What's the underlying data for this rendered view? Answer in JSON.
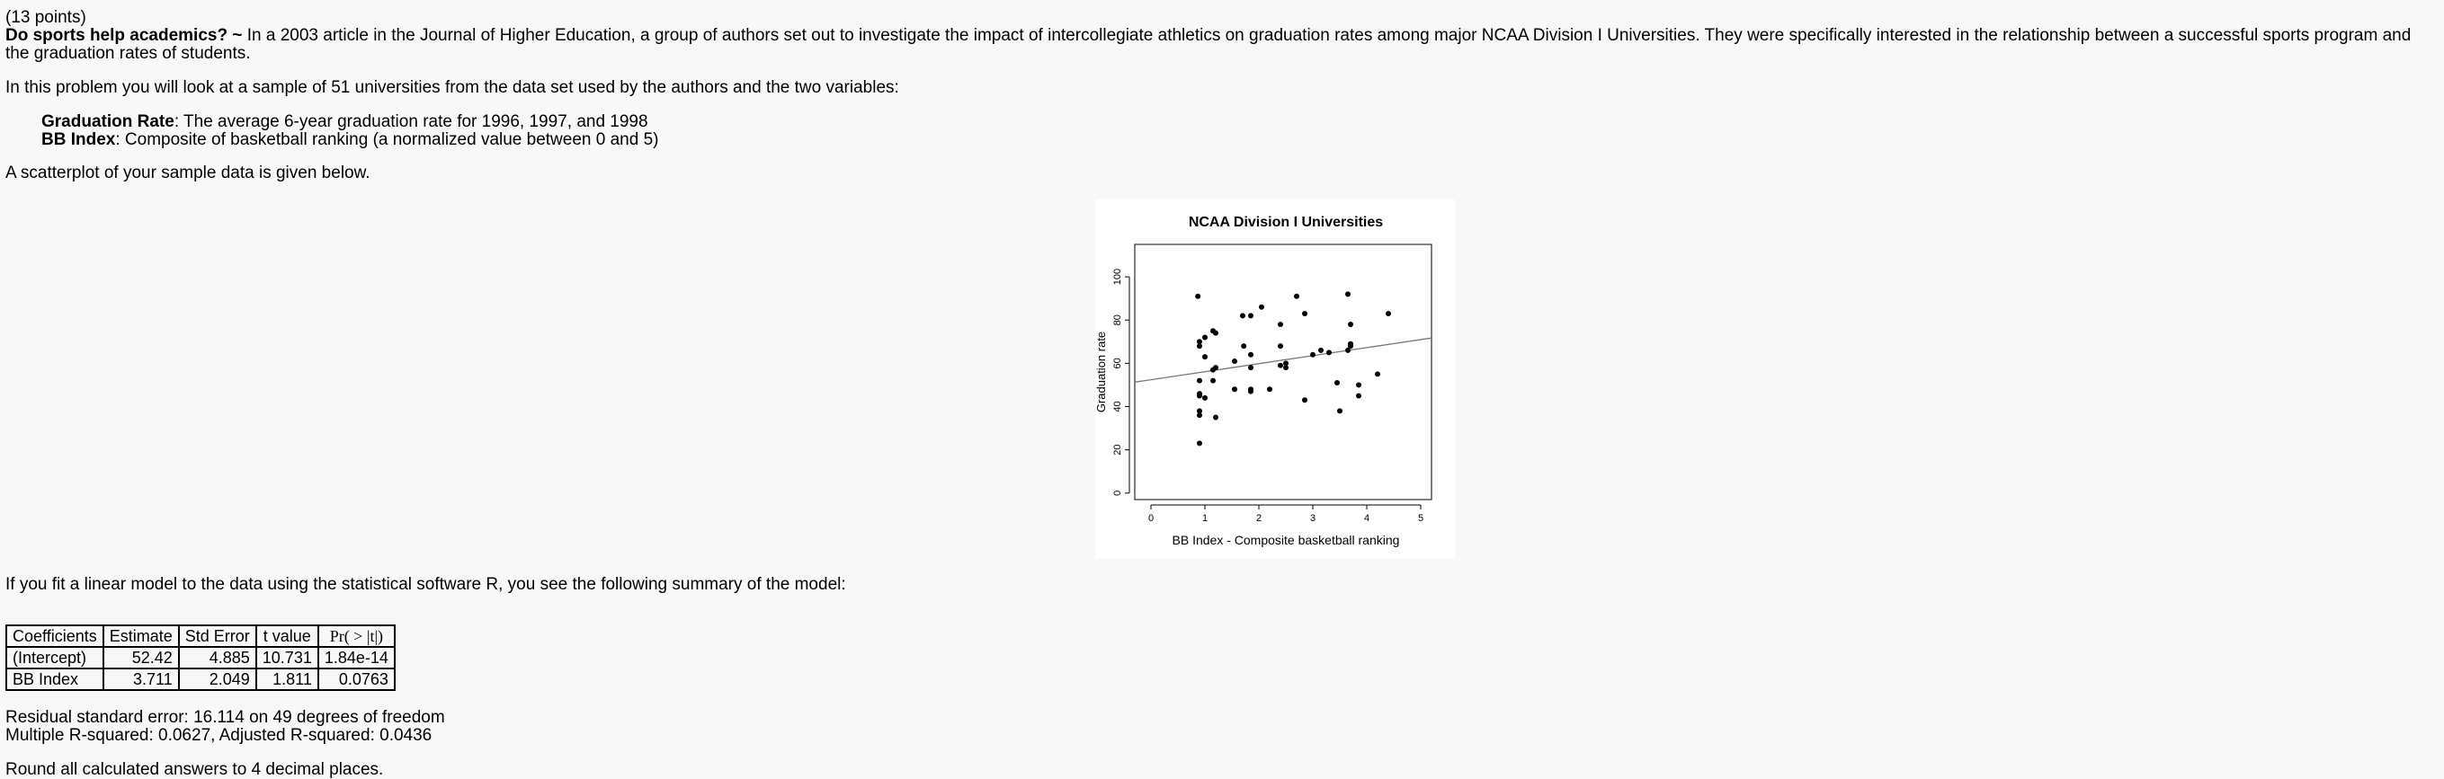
{
  "points_label": "(13 points)",
  "intro": {
    "title": "Do sports help academics? ~",
    "text": "In a 2003 article in the Journal of Higher Education, a group of authors set out to investigate the impact of intercollegiate athletics on graduation rates among major NCAA Division I Universities. They were specifically interested in the relationship between a successful sports program and the graduation rates of students."
  },
  "sample_text": "In this problem you will look at a sample of 51 universities from the data set used by the authors and the two variables:",
  "variables": [
    {
      "name": "Graduation Rate",
      "desc": ": The average 6-year graduation rate for 1996, 1997, and 1998"
    },
    {
      "name": "BB Index",
      "desc": ": Composite of basketball ranking (a normalized value between 0 and 5)"
    }
  ],
  "scatter_text": "A scatterplot of your sample data is given below.",
  "chart_data": {
    "type": "scatter",
    "title": "NCAA Division I Universities",
    "xlabel": "BB Index - Composite basketball ranking",
    "ylabel": "Graduation rate",
    "xlim": [
      0,
      5
    ],
    "ylim": [
      0,
      100
    ],
    "xticks": [
      "0",
      "1",
      "2",
      "3",
      "4",
      "5"
    ],
    "yticks": [
      "0",
      "20",
      "40",
      "60",
      "80",
      "100"
    ],
    "grid": false,
    "points": [
      [
        0.87,
        91
      ],
      [
        0.9,
        68
      ],
      [
        0.9,
        70
      ],
      [
        0.9,
        52
      ],
      [
        0.9,
        45
      ],
      [
        0.9,
        46
      ],
      [
        0.9,
        38
      ],
      [
        0.9,
        36
      ],
      [
        0.9,
        23
      ],
      [
        1.0,
        72
      ],
      [
        1.0,
        63
      ],
      [
        1.0,
        44
      ],
      [
        1.15,
        75
      ],
      [
        1.2,
        74
      ],
      [
        1.2,
        58
      ],
      [
        1.15,
        57
      ],
      [
        1.15,
        52
      ],
      [
        1.2,
        35
      ],
      [
        1.55,
        61
      ],
      [
        1.55,
        48
      ],
      [
        1.7,
        82
      ],
      [
        1.72,
        68
      ],
      [
        1.85,
        82
      ],
      [
        1.85,
        64
      ],
      [
        1.85,
        58
      ],
      [
        1.85,
        48
      ],
      [
        1.85,
        47
      ],
      [
        2.05,
        86
      ],
      [
        2.2,
        48
      ],
      [
        2.4,
        78
      ],
      [
        2.4,
        68
      ],
      [
        2.4,
        59
      ],
      [
        2.5,
        58
      ],
      [
        2.5,
        60
      ],
      [
        2.7,
        91
      ],
      [
        2.85,
        83
      ],
      [
        2.85,
        43
      ],
      [
        3.0,
        64
      ],
      [
        3.15,
        66
      ],
      [
        3.3,
        65
      ],
      [
        3.45,
        51
      ],
      [
        3.5,
        38
      ],
      [
        3.7,
        69
      ],
      [
        3.7,
        68
      ],
      [
        3.65,
        92
      ],
      [
        3.7,
        78
      ],
      [
        3.85,
        50
      ],
      [
        3.85,
        45
      ],
      [
        4.2,
        55
      ],
      [
        4.4,
        83
      ],
      [
        3.65,
        66
      ]
    ],
    "regression": {
      "intercept": 52.42,
      "slope": 3.711
    }
  },
  "model_text": "If you fit a linear model to the data using the statistical software R, you see the following summary of the model:",
  "table": {
    "headers": [
      "Coefficients",
      "Estimate",
      "Std Error",
      "t value",
      "Pr( > |t|)"
    ],
    "rows": [
      [
        "(Intercept)",
        "52.42",
        "4.885",
        "10.731",
        "1.84e-14"
      ],
      [
        "BB Index",
        "3.711",
        "2.049",
        "1.811",
        "0.0763"
      ]
    ]
  },
  "residual_text": "Residual standard error: 16.114 on 49 degrees of freedom",
  "rsquared_text": "Multiple R-squared: 0.0627, Adjusted R-squared: 0.0436",
  "round_text": "Round all calculated answers to 4 decimal places."
}
